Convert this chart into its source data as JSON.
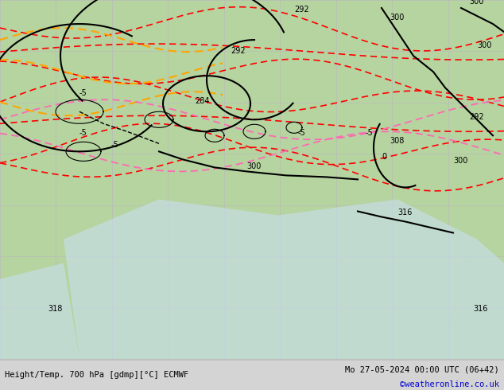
{
  "title_left": "Height/Temp. 700 hPa [gdmp][°C] ECMWF",
  "title_right": "Mo 27-05-2024 00:00 UTC (06+42)",
  "copyright": "©weatheronline.co.uk",
  "background_color": "#c8e6c9",
  "land_color": "#c8e6c9",
  "ocean_color": "#c8e6c9",
  "fig_width": 6.34,
  "fig_height": 4.9,
  "dpi": 100,
  "map_bg": "#b8d4b0",
  "grid_color": "#aaaaaa",
  "bottom_bar_color": "#d0d0d0",
  "bottom_bar_height": 0.075,
  "title_fontsize": 7.5,
  "copyright_fontsize": 7.5,
  "contour_label_fontsize": 7
}
